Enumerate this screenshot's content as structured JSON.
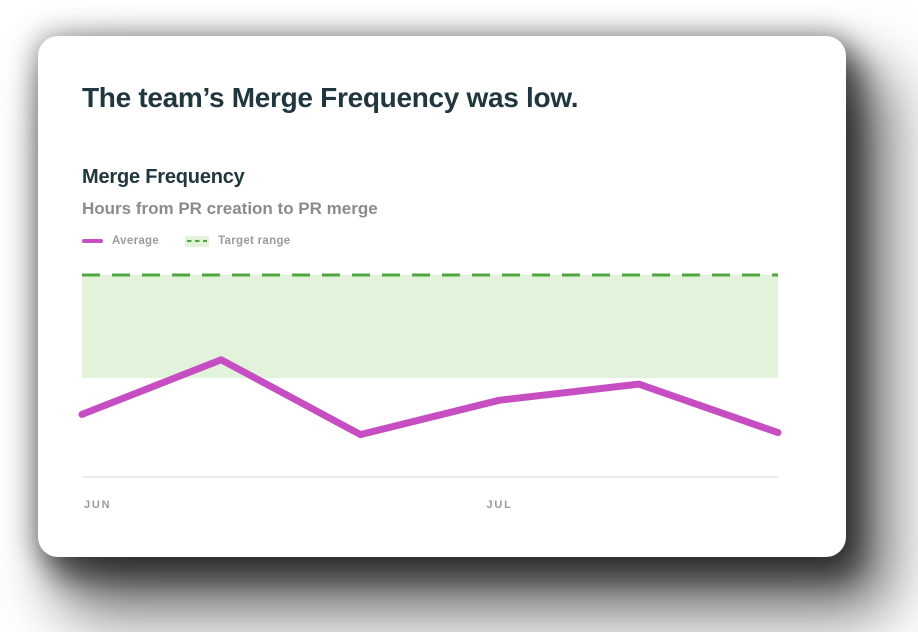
{
  "headline": "The team’s Merge Frequency was low.",
  "chart": {
    "title": "Merge Frequency",
    "subtitle": "Hours from PR creation to PR merge",
    "legend": {
      "average_label": "Average",
      "target_label": "Target range"
    }
  },
  "chart_data": {
    "type": "line",
    "title": "Merge Frequency",
    "subtitle": "Hours from PR creation to PR merge",
    "ylabel": "",
    "xlabel": "",
    "ylim": [
      0,
      100
    ],
    "grid": false,
    "legend_position": "top-left",
    "x_ticks": [
      {
        "index": 0,
        "label": "JUN"
      },
      {
        "index": 3,
        "label": "JUL"
      }
    ],
    "series": [
      {
        "name": "Average",
        "values": [
          31,
          58,
          21,
          38,
          46,
          22
        ],
        "color": "#c64ec2"
      }
    ],
    "target_range": {
      "min": 49,
      "max": 100,
      "band_color": "#e3f2da",
      "line_color": "#4fa83e",
      "line_style": "dashed"
    },
    "axis_line_color": "#d9d9d9",
    "label_color": "#9b9b9b"
  }
}
